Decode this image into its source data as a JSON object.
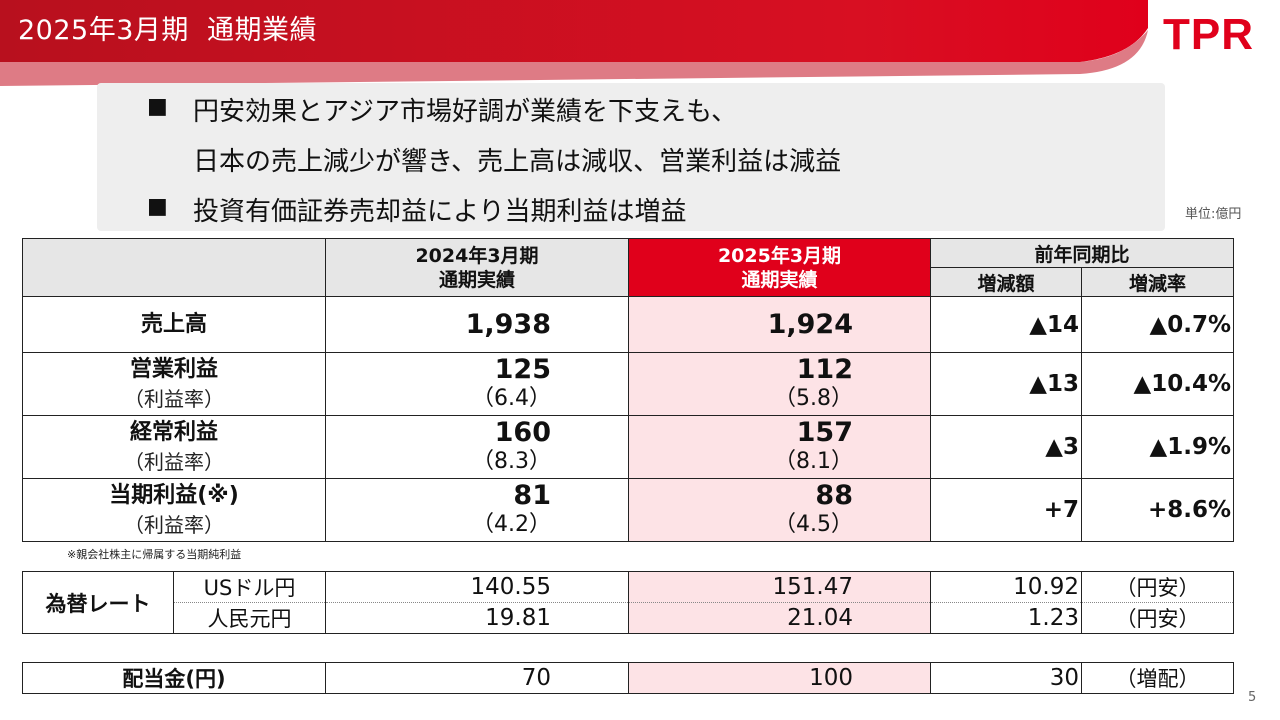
{
  "header": {
    "title": "2025年3月期  通期業績",
    "logo_text": "TPR",
    "accent_color": "#e0001b"
  },
  "summary": {
    "bullet_marker": "■",
    "bullets": [
      "円安効果とアジア市場好調が業績を下支えも、",
      "日本の売上減少が響き、売上高は減収、営業利益は減益",
      "投資有価証券売却益により当期利益は増益"
    ]
  },
  "unit_label": "単位:億円",
  "table": {
    "col_fy2024_line1": "2024年3月期",
    "col_fy2024_line2": "通期実績",
    "col_fy2025_line1": "2025年3月期",
    "col_fy2025_line2": "通期実績",
    "col_yoy": "前年同期比",
    "col_change": "増減額",
    "col_rate": "増減率",
    "rows": [
      {
        "label": "売上高",
        "fy2024": "1,938",
        "fy2025": "1,924",
        "change": "▲14",
        "rate": "▲0.7%"
      },
      {
        "label": "営業利益",
        "sub_label": "（利益率）",
        "fy2024": "125",
        "fy2024_sub": "（6.4）",
        "fy2025": "112",
        "fy2025_sub": "（5.8）",
        "change": "▲13",
        "rate": "▲10.4%"
      },
      {
        "label": "経常利益",
        "sub_label": "（利益率）",
        "fy2024": "160",
        "fy2024_sub": "（8.3）",
        "fy2025": "157",
        "fy2025_sub": "（8.1）",
        "change": "▲3",
        "rate": "▲1.9%"
      },
      {
        "label": "当期利益(※)",
        "sub_label": "（利益率）",
        "fy2024": "81",
        "fy2024_sub": "（4.2）",
        "fy2025": "88",
        "fy2025_sub": "（4.5）",
        "change": "+7",
        "rate": "+8.6%"
      }
    ]
  },
  "footnote": "※親会社株主に帰属する当期純利益",
  "fx": {
    "label": "為替レート",
    "rows": [
      {
        "currency": "USドル円",
        "fy2024": "140.55",
        "fy2025": "151.47",
        "diff": "10.92",
        "note": "（円安）"
      },
      {
        "currency": "人民元円",
        "fy2024": "19.81",
        "fy2025": "21.04",
        "diff": "1.23",
        "note": "（円安）"
      }
    ]
  },
  "dividend": {
    "label": "配当金(円)",
    "fy2024": "70",
    "fy2025": "100",
    "diff": "30",
    "note": "（増配）"
  },
  "page_number": "5"
}
